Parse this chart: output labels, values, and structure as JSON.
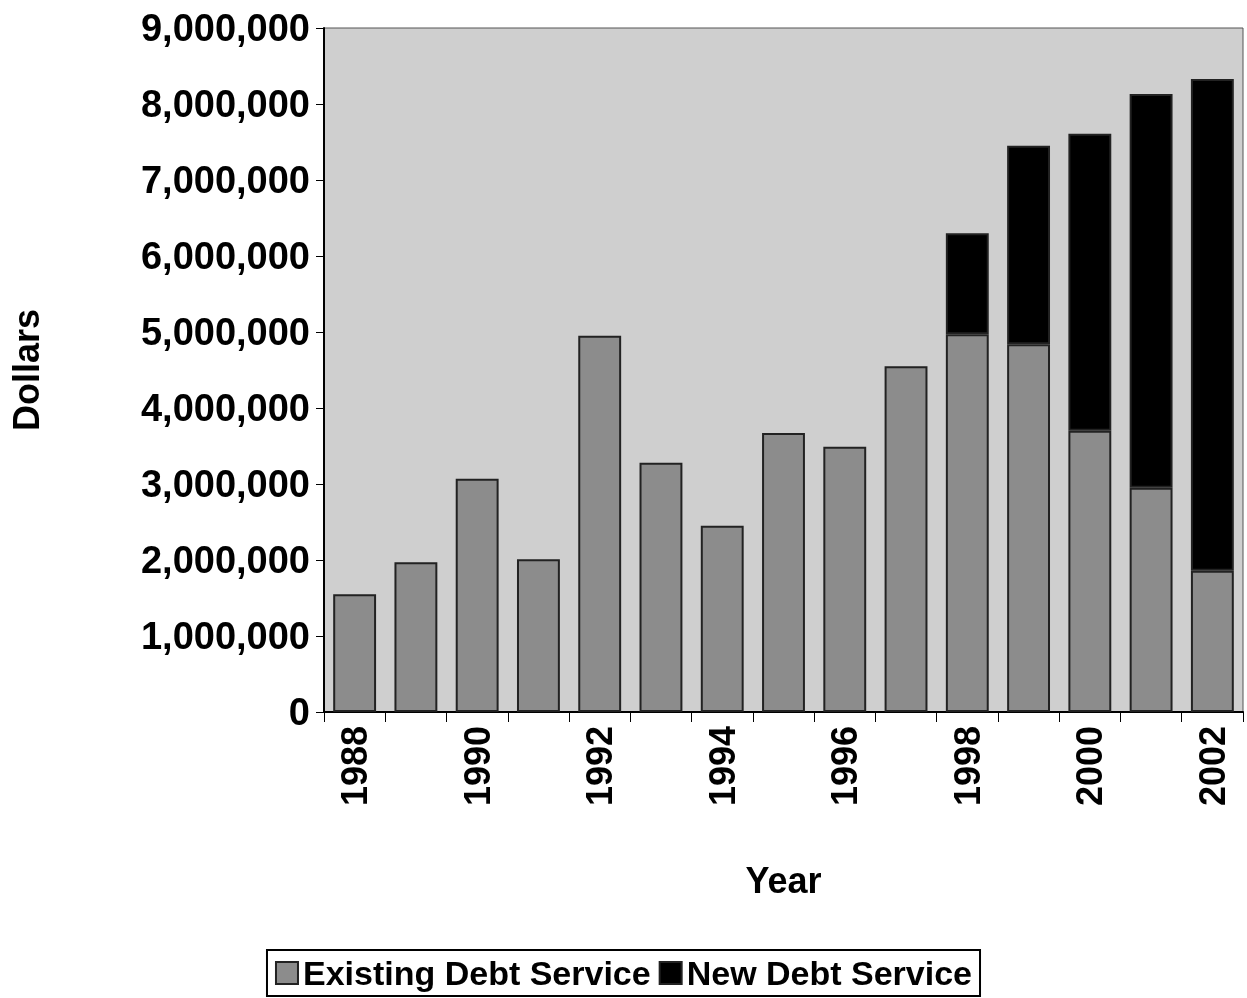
{
  "chart_data": {
    "type": "bar",
    "xlabel": "Year",
    "ylabel": "Dollars",
    "categories": [
      "1988",
      null,
      "1990",
      null,
      "1992",
      null,
      "1994",
      null,
      "1996",
      null,
      "1998",
      null,
      "2000",
      null,
      "2002"
    ],
    "series": [
      {
        "name": "Existing Debt Service",
        "color": "#8c8c8c",
        "values": [
          1550000,
          1970000,
          3070000,
          2010000,
          4950000,
          3280000,
          2450000,
          3670000,
          3490000,
          4550000,
          4970000,
          4840000,
          3700000,
          2950000,
          1860000
        ]
      },
      {
        "name": "New Debt Service",
        "color": "#000000",
        "values": [
          null,
          null,
          null,
          null,
          null,
          null,
          null,
          null,
          null,
          null,
          1330000,
          2610000,
          3910000,
          5180000,
          6470000
        ]
      }
    ],
    "stacked": true,
    "ylim": [
      0,
      9000000
    ],
    "yticks": [
      0,
      {
        "value": 1000000,
        "label": "1,000,000"
      },
      {
        "value": 2000000,
        "label": "2,000,000"
      },
      {
        "value": 3000000,
        "label": "3,000,000"
      },
      {
        "value": 4000000,
        "label": "4,000,000"
      },
      {
        "value": 5000000,
        "label": "5,000,000"
      },
      {
        "value": 6000000,
        "label": "6,000,000"
      },
      {
        "value": 7000000,
        "label": "7,000,000"
      },
      {
        "value": 8000000,
        "label": "8,000,000"
      },
      {
        "value": 9000000,
        "label": "9,000,000"
      }
    ],
    "grid": false,
    "legend": "bottom"
  }
}
